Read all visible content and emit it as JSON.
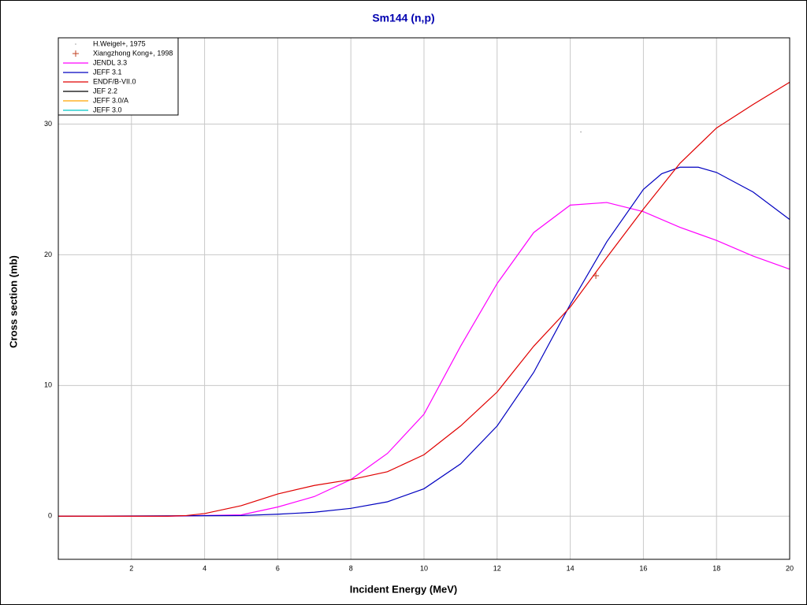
{
  "chart_data": {
    "type": "line",
    "title": "Sm144 (n,p)",
    "x_label": "Incident Energy (MeV)",
    "y_label": "Cross section (mb)",
    "xlim": [
      0,
      20
    ],
    "xticks": [
      2,
      4,
      6,
      8,
      10,
      12,
      14,
      16,
      18,
      20
    ],
    "ylim": [
      -3.3,
      36.6
    ],
    "yticks": [
      0,
      10,
      20,
      30
    ],
    "grid": true,
    "legend": "top-left",
    "series": [
      {
        "name": "H.Weigel+, 1975",
        "mode": "markers",
        "marker": "dot",
        "color": "#a0a0a0",
        "x": [
          14.29
        ],
        "values": [
          29.4
        ]
      },
      {
        "name": "Xiangzhong Kong+, 1998",
        "mode": "markers",
        "marker": "plus",
        "color": "#c04020",
        "x": [
          14.7
        ],
        "values": [
          18.4
        ]
      },
      {
        "name": "JENDL 3.3",
        "mode": "lines",
        "color": "#ff00ff",
        "x": [
          0,
          3,
          5,
          6,
          7,
          8,
          9,
          10,
          11,
          12,
          13,
          14,
          15,
          16,
          17,
          18,
          19,
          20
        ],
        "values": [
          0,
          0,
          0.1,
          0.7,
          1.5,
          2.8,
          4.8,
          7.8,
          13,
          17.8,
          21.7,
          23.8,
          24.0,
          23.3,
          22.1,
          21.1,
          19.9,
          18.9
        ]
      },
      {
        "name": "JEFF 3.1",
        "mode": "lines",
        "color": "#0000c0",
        "x": [
          0,
          5,
          6,
          7,
          8,
          9,
          10,
          11,
          12,
          13,
          14,
          15,
          16,
          16.5,
          17,
          17.5,
          18,
          19,
          20
        ],
        "values": [
          0,
          0.05,
          0.15,
          0.3,
          0.6,
          1.1,
          2.1,
          4.0,
          6.9,
          11.0,
          16.2,
          21.0,
          25.0,
          26.2,
          26.7,
          26.7,
          26.3,
          24.8,
          22.7
        ]
      },
      {
        "name": "ENDF/B-VII.0",
        "mode": "lines",
        "color": "#e00000",
        "x": [
          0,
          3,
          3.5,
          4,
          5,
          6,
          7,
          8,
          9,
          10,
          11,
          12,
          13,
          14,
          15,
          16,
          17,
          18,
          19,
          20
        ],
        "values": [
          0,
          0,
          0.05,
          0.2,
          0.8,
          1.7,
          2.35,
          2.8,
          3.4,
          4.7,
          6.9,
          9.5,
          13.0,
          16.0,
          19.8,
          23.5,
          27.0,
          29.7,
          31.5,
          33.2
        ]
      },
      {
        "name": "JEF 2.2",
        "mode": "lines",
        "color": "#000000",
        "x": [],
        "values": []
      },
      {
        "name": "JEFF 3.0/A",
        "mode": "lines",
        "color": "#ffa500",
        "x": [],
        "values": []
      },
      {
        "name": "JEFF 3.0",
        "mode": "lines",
        "color": "#00c8c8",
        "x": [],
        "values": []
      }
    ]
  }
}
